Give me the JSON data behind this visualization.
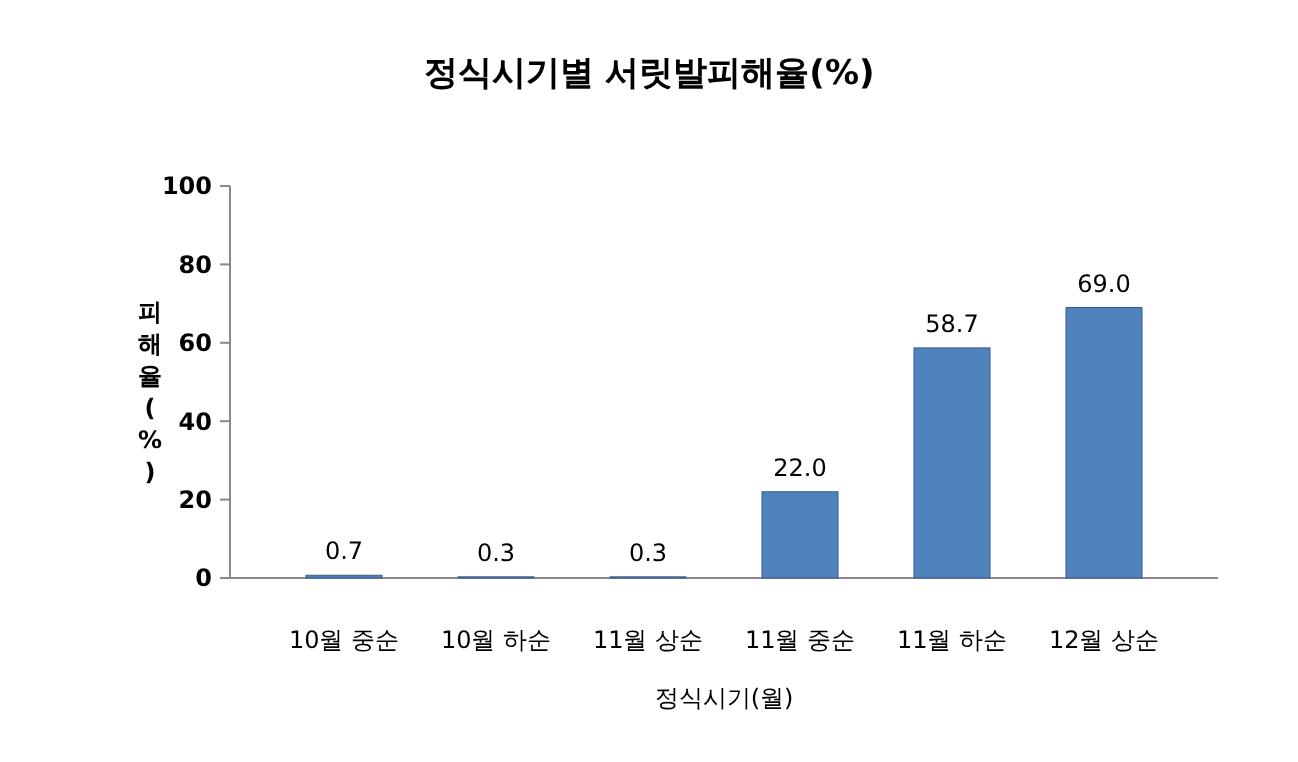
{
  "chart_data": {
    "type": "bar",
    "title": "정식시기별 서릿발피해율(%)",
    "xlabel": "정식시기(월)",
    "ylabel": "피해율(%)",
    "categories": [
      "10월 중순",
      "10월 하순",
      "11월 상순",
      "11월 중순",
      "11월 하순",
      "12월 상순"
    ],
    "values": [
      0.7,
      0.3,
      0.3,
      22.0,
      58.7,
      69.0
    ],
    "value_labels": [
      "0.7",
      "0.3",
      "0.3",
      "22.0",
      "58.7",
      "69.0"
    ],
    "color": "#4f81bd",
    "ylim": [
      0,
      100
    ],
    "yticks": [
      0,
      20,
      40,
      60,
      80,
      100
    ],
    "grid": false
  }
}
